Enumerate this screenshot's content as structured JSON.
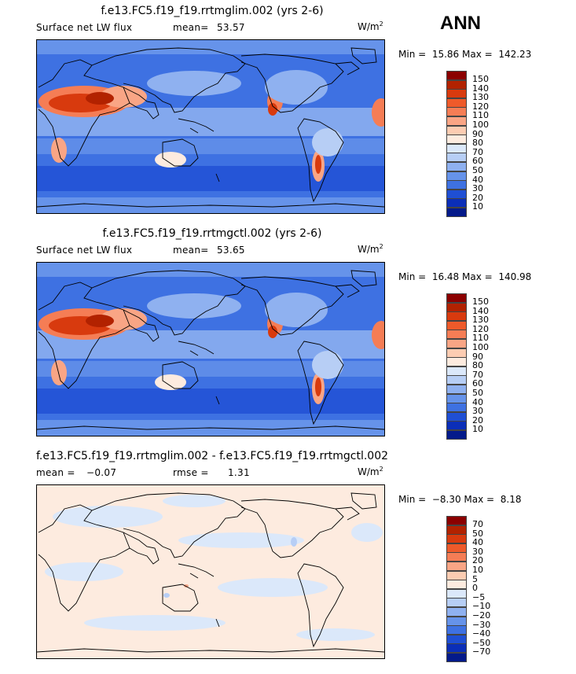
{
  "season": "ANN",
  "panels": [
    {
      "title": "f.e13.FC5.f19_f19.rrtmglim.002 (yrs 2-6)",
      "field": "Surface net LW flux",
      "stat1_label": "mean=",
      "stat1_value": "53.57",
      "stat2_label": "",
      "stat2_value": "",
      "units": "W/m",
      "units_exp": "2",
      "min_label": "Min =",
      "min": "15.86",
      "max_label": "Max =",
      "max": "142.23",
      "levels": [
        "150",
        "140",
        "130",
        "120",
        "110",
        "100",
        "90",
        "80",
        "70",
        "60",
        "50",
        "40",
        "30",
        "20",
        "10"
      ],
      "colors": [
        "#8b0000",
        "#b22200",
        "#d83a0e",
        "#ee5a2a",
        "#f57d55",
        "#f9a585",
        "#fcccb2",
        "#fdebdf",
        "#dbe8fa",
        "#b7cef5",
        "#8fb1f0",
        "#6693ea",
        "#3e71e2",
        "#1f4fd4",
        "#0b2eb8",
        "#041a8a"
      ],
      "map_style": "abs"
    },
    {
      "title": "f.e13.FC5.f19_f19.rrtmgctl.002 (yrs 2-6)",
      "field": "Surface net LW flux",
      "stat1_label": "mean=",
      "stat1_value": "53.65",
      "stat2_label": "",
      "stat2_value": "",
      "units": "W/m",
      "units_exp": "2",
      "min_label": "Min =",
      "min": "16.48",
      "max_label": "Max =",
      "max": "140.98",
      "levels": [
        "150",
        "140",
        "130",
        "120",
        "110",
        "100",
        "90",
        "80",
        "70",
        "60",
        "50",
        "40",
        "30",
        "20",
        "10"
      ],
      "colors": [
        "#8b0000",
        "#b22200",
        "#d83a0e",
        "#ee5a2a",
        "#f57d55",
        "#f9a585",
        "#fcccb2",
        "#fdebdf",
        "#dbe8fa",
        "#b7cef5",
        "#8fb1f0",
        "#6693ea",
        "#3e71e2",
        "#1f4fd4",
        "#0b2eb8",
        "#041a8a"
      ],
      "map_style": "abs"
    },
    {
      "title": "f.e13.FC5.f19_f19.rrtmglim.002 - f.e13.FC5.f19_f19.rrtmgctl.002",
      "field": "",
      "stat1_label": "mean =",
      "stat1_value": "−0.07",
      "stat2_label": "rmse =",
      "stat2_value": "1.31",
      "units": "W/m",
      "units_exp": "2",
      "min_label": "Min =",
      "min": "−8.30",
      "max_label": "Max =",
      "max": "8.18",
      "levels": [
        "70",
        "50",
        "40",
        "30",
        "20",
        "10",
        "5",
        "0",
        "−5",
        "−10",
        "−20",
        "−30",
        "−40",
        "−50",
        "−70"
      ],
      "colors": [
        "#8b0000",
        "#b22200",
        "#d83a0e",
        "#ee5a2a",
        "#f57d55",
        "#f9a585",
        "#fcccb2",
        "#fdebdf",
        "#dbe8fa",
        "#b7cef5",
        "#8fb1f0",
        "#6693ea",
        "#3e71e2",
        "#1f4fd4",
        "#0b2eb8",
        "#041a8a"
      ],
      "map_style": "diff"
    }
  ]
}
